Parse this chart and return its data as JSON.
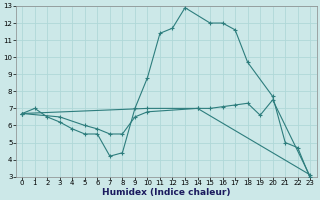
{
  "xlabel": "Humidex (Indice chaleur)",
  "bg_color": "#cce8e8",
  "line_color": "#2d7d7d",
  "grid_color": "#b0d8d8",
  "xlim": [
    -0.5,
    23.5
  ],
  "ylim": [
    3,
    13
  ],
  "xticks": [
    0,
    1,
    2,
    3,
    4,
    5,
    6,
    7,
    8,
    9,
    10,
    11,
    12,
    13,
    14,
    15,
    16,
    17,
    18,
    19,
    20,
    21,
    22,
    23
  ],
  "yticks": [
    3,
    4,
    5,
    6,
    7,
    8,
    9,
    10,
    11,
    12,
    13
  ],
  "line1_x": [
    0,
    1,
    2,
    3,
    4,
    5,
    6,
    7,
    8,
    9,
    10,
    11,
    12,
    13,
    15,
    16,
    17,
    18,
    20,
    21,
    22,
    23
  ],
  "line1_y": [
    6.7,
    7.0,
    6.5,
    6.2,
    5.8,
    5.5,
    5.5,
    4.2,
    4.4,
    7.0,
    8.8,
    11.4,
    11.7,
    12.9,
    12.0,
    12.0,
    11.6,
    9.7,
    7.7,
    5.0,
    4.7,
    2.9
  ],
  "line2_x": [
    0,
    10,
    14,
    15,
    16,
    17,
    18,
    19,
    20,
    23
  ],
  "line2_y": [
    6.7,
    7.0,
    7.0,
    7.0,
    7.1,
    7.2,
    7.3,
    6.6,
    7.5,
    3.0
  ],
  "line3_x": [
    0,
    3,
    5,
    6,
    7,
    8,
    9,
    10,
    14,
    23
  ],
  "line3_y": [
    6.7,
    6.5,
    6.0,
    5.8,
    5.5,
    5.5,
    6.5,
    6.8,
    7.0,
    3.1
  ]
}
